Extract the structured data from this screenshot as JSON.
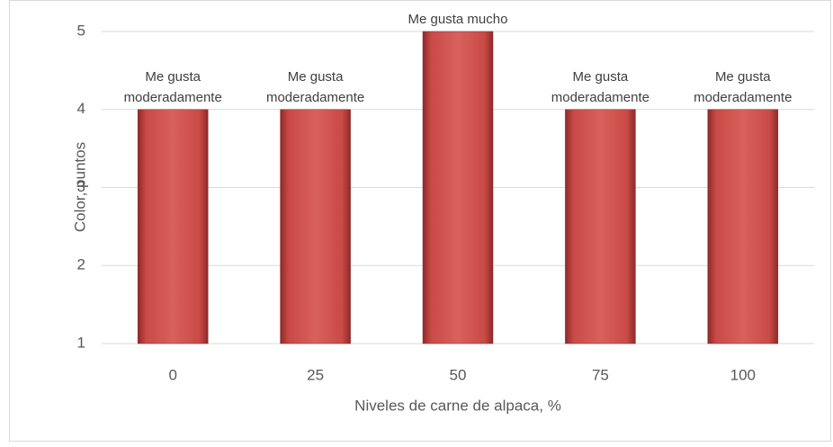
{
  "chart_data": {
    "type": "bar",
    "x_label": "Niveles de carne de alpaca, %",
    "y_label": "Color, puntos",
    "categories": [
      "0",
      "25",
      "50",
      "75",
      "100"
    ],
    "values": [
      4,
      4,
      5,
      4,
      4
    ],
    "value_labels": [
      "Me gusta moderadamente",
      "Me gusta moderadamente",
      "Me gusta mucho",
      "Me gusta moderadamente",
      "Me gusta moderadamente"
    ],
    "color": "#c0504d",
    "ylim": [
      1,
      5
    ],
    "yticks": [
      1,
      2,
      3,
      4,
      5
    ],
    "grid": true
  }
}
